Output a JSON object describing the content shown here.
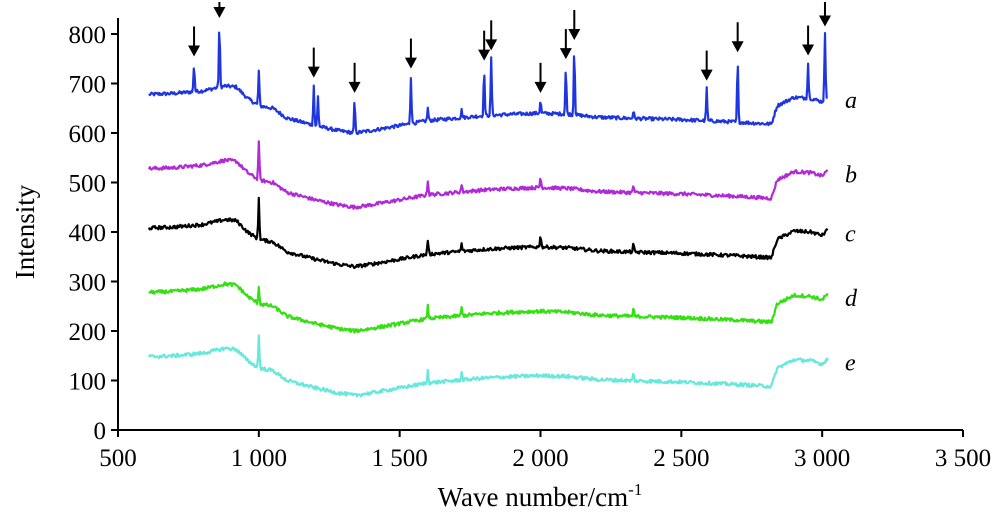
{
  "chart_data": {
    "type": "line",
    "xlabel": "Wave number/cm",
    "xlabel_sup": "-1",
    "ylabel": "Intensity",
    "xlim": [
      500,
      3500
    ],
    "ylim": [
      0,
      850
    ],
    "x_ticks": [
      500,
      1000,
      1500,
      2000,
      2500,
      3000,
      3500
    ],
    "x_tick_labels": [
      "500",
      "1 000",
      "1 500",
      "2 000",
      "2 500",
      "3 000",
      "3 500"
    ],
    "y_ticks": [
      0,
      100,
      200,
      300,
      400,
      500,
      600,
      700,
      800
    ],
    "y_tick_labels": [
      "0",
      "100",
      "200",
      "300",
      "400",
      "500",
      "600",
      "700",
      "800"
    ],
    "grid": false,
    "legend": "none",
    "x_range": [
      610,
      3020
    ],
    "series": [
      {
        "name": "a",
        "color": "#1f35e0",
        "offset": 530,
        "peaks": [
          [
            770,
            55
          ],
          [
            860,
            125
          ],
          [
            1000,
            70
          ],
          [
            1195,
            80
          ],
          [
            1210,
            60
          ],
          [
            1340,
            65
          ],
          [
            1540,
            95
          ],
          [
            1600,
            25
          ],
          [
            1720,
            15
          ],
          [
            1800,
            95
          ],
          [
            1825,
            115
          ],
          [
            2000,
            25
          ],
          [
            2090,
            95
          ],
          [
            2120,
            135
          ],
          [
            2330,
            15
          ],
          [
            2590,
            65
          ],
          [
            2700,
            125
          ],
          [
            2950,
            70
          ],
          [
            3010,
            130
          ]
        ]
      },
      {
        "name": "b",
        "color": "#b02ad8",
        "offset": 380,
        "peaks": [
          [
            1000,
            80
          ],
          [
            1600,
            30
          ],
          [
            1720,
            15
          ],
          [
            2000,
            20
          ],
          [
            2330,
            15
          ]
        ]
      },
      {
        "name": "c",
        "color": "#000000",
        "offset": 260,
        "peaks": [
          [
            1000,
            85
          ],
          [
            1600,
            30
          ],
          [
            1720,
            15
          ],
          [
            2000,
            25
          ],
          [
            2330,
            15
          ]
        ]
      },
      {
        "name": "d",
        "color": "#33e010",
        "offset": 130,
        "peaks": [
          [
            1000,
            35
          ],
          [
            1600,
            25
          ],
          [
            1720,
            15
          ],
          [
            2330,
            15
          ]
        ]
      },
      {
        "name": "e",
        "color": "#66e8dc",
        "offset": 0,
        "peaks": [
          [
            1000,
            65
          ],
          [
            1600,
            25
          ],
          [
            1720,
            15
          ],
          [
            2330,
            15
          ]
        ]
      }
    ],
    "baseline_shape": [
      [
        610,
        148
      ],
      [
        700,
        150
      ],
      [
        800,
        155
      ],
      [
        880,
        165
      ],
      [
        920,
        163
      ],
      [
        960,
        140
      ],
      [
        1000,
        125
      ],
      [
        1050,
        120
      ],
      [
        1100,
        100
      ],
      [
        1200,
        85
      ],
      [
        1280,
        75
      ],
      [
        1340,
        70
      ],
      [
        1400,
        75
      ],
      [
        1500,
        85
      ],
      [
        1600,
        95
      ],
      [
        1700,
        100
      ],
      [
        1800,
        105
      ],
      [
        1900,
        108
      ],
      [
        2000,
        110
      ],
      [
        2100,
        108
      ],
      [
        2200,
        102
      ],
      [
        2300,
        100
      ],
      [
        2500,
        97
      ],
      [
        2700,
        92
      ],
      [
        2820,
        88
      ],
      [
        2840,
        125
      ],
      [
        2900,
        142
      ],
      [
        2960,
        140
      ],
      [
        3000,
        133
      ],
      [
        3020,
        145
      ]
    ],
    "arrows_at": [
      770,
      860,
      1195,
      1340,
      1540,
      1800,
      1825,
      2000,
      2090,
      2120,
      2590,
      2700,
      2950,
      3010
    ]
  }
}
